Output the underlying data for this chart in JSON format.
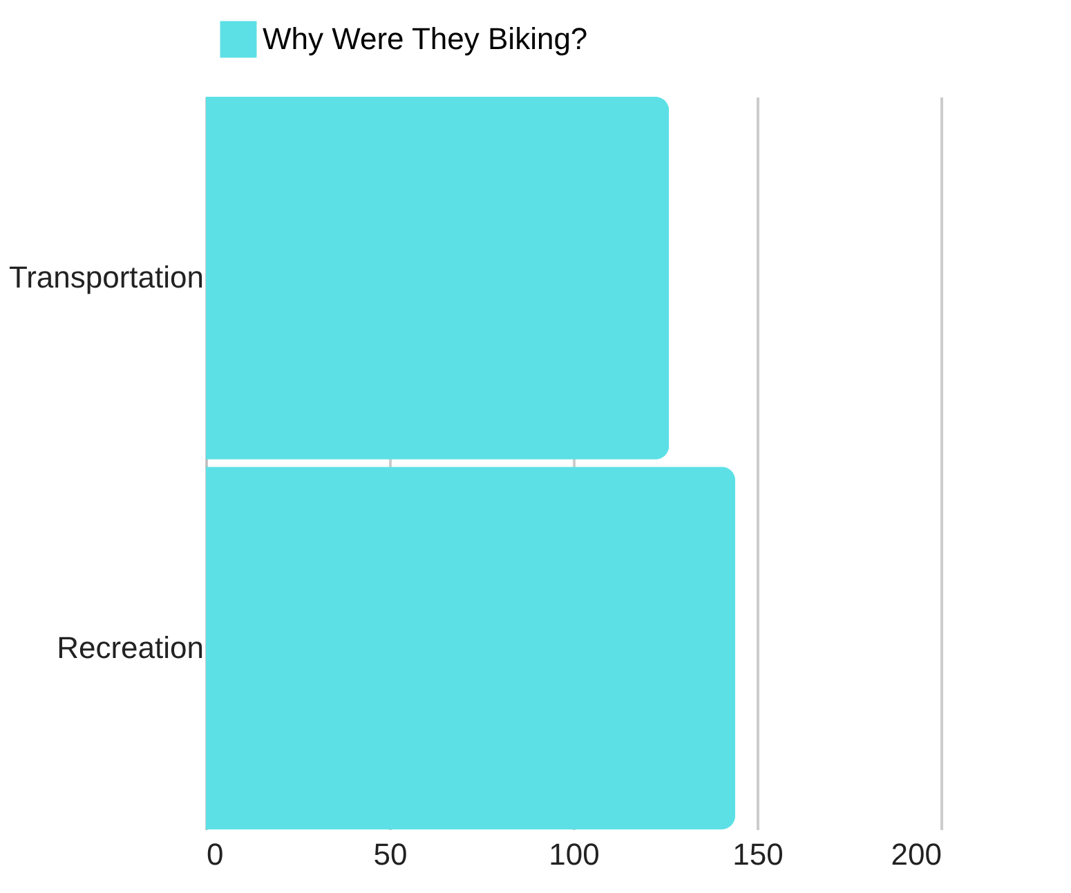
{
  "chart_data": {
    "type": "bar",
    "orientation": "horizontal",
    "categories": [
      "Transportation",
      "Recreation"
    ],
    "series": [
      {
        "name": "Why Were They Biking?",
        "color": "#5ce0e6",
        "values": [
          126,
          144
        ]
      }
    ],
    "xlim": [
      0,
      200
    ],
    "xticks": [
      0,
      50,
      100,
      150,
      200
    ],
    "grid": "x",
    "legend": "top"
  }
}
